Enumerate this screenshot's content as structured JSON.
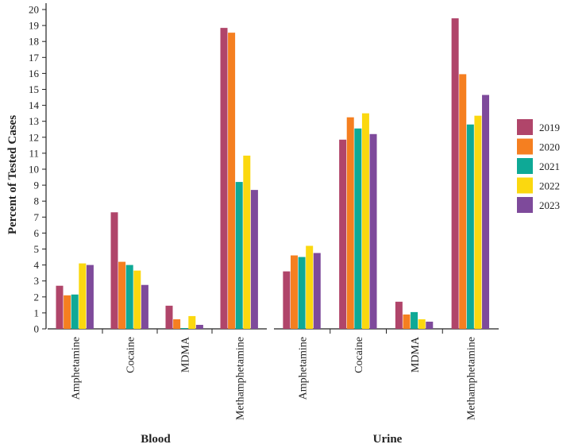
{
  "chart_data": {
    "type": "bar",
    "ylabel": "Percent of Tested Cases",
    "ylim": [
      0,
      20
    ],
    "yticks": [
      0,
      1,
      2,
      3,
      4,
      5,
      6,
      7,
      8,
      9,
      10,
      11,
      12,
      13,
      14,
      15,
      16,
      17,
      18,
      19,
      20
    ],
    "legend": {
      "placement": "right",
      "entries": [
        {
          "name": "2019",
          "color": "#b0456a"
        },
        {
          "name": "2020",
          "color": "#f57f20"
        },
        {
          "name": "2021",
          "color": "#0ea996"
        },
        {
          "name": "2022",
          "color": "#fbd80f"
        },
        {
          "name": "2023",
          "color": "#7e4a9b"
        }
      ]
    },
    "groups": [
      {
        "name": "Blood",
        "categories": [
          "Amphetamine",
          "Cocaine",
          "MDMA",
          "Methamphetamine"
        ],
        "series": [
          {
            "name": "2019",
            "values": [
              2.7,
              7.3,
              1.45,
              18.85
            ]
          },
          {
            "name": "2020",
            "values": [
              2.1,
              4.2,
              0.6,
              18.55
            ]
          },
          {
            "name": "2021",
            "values": [
              2.15,
              4.0,
              0.05,
              9.2
            ]
          },
          {
            "name": "2022",
            "values": [
              4.1,
              3.65,
              0.8,
              10.85
            ]
          },
          {
            "name": "2023",
            "values": [
              4.0,
              2.75,
              0.25,
              8.7
            ]
          }
        ]
      },
      {
        "name": "Urine",
        "categories": [
          "Amphetamine",
          "Cocaine",
          "MDMA",
          "Methamphetamine"
        ],
        "series": [
          {
            "name": "2019",
            "values": [
              3.6,
              11.85,
              1.7,
              19.45
            ]
          },
          {
            "name": "2020",
            "values": [
              4.6,
              13.25,
              0.9,
              15.95
            ]
          },
          {
            "name": "2021",
            "values": [
              4.5,
              12.55,
              1.05,
              12.8
            ]
          },
          {
            "name": "2022",
            "values": [
              5.2,
              13.5,
              0.6,
              13.35
            ]
          },
          {
            "name": "2023",
            "values": [
              4.75,
              12.2,
              0.45,
              14.65
            ]
          }
        ]
      }
    ]
  }
}
